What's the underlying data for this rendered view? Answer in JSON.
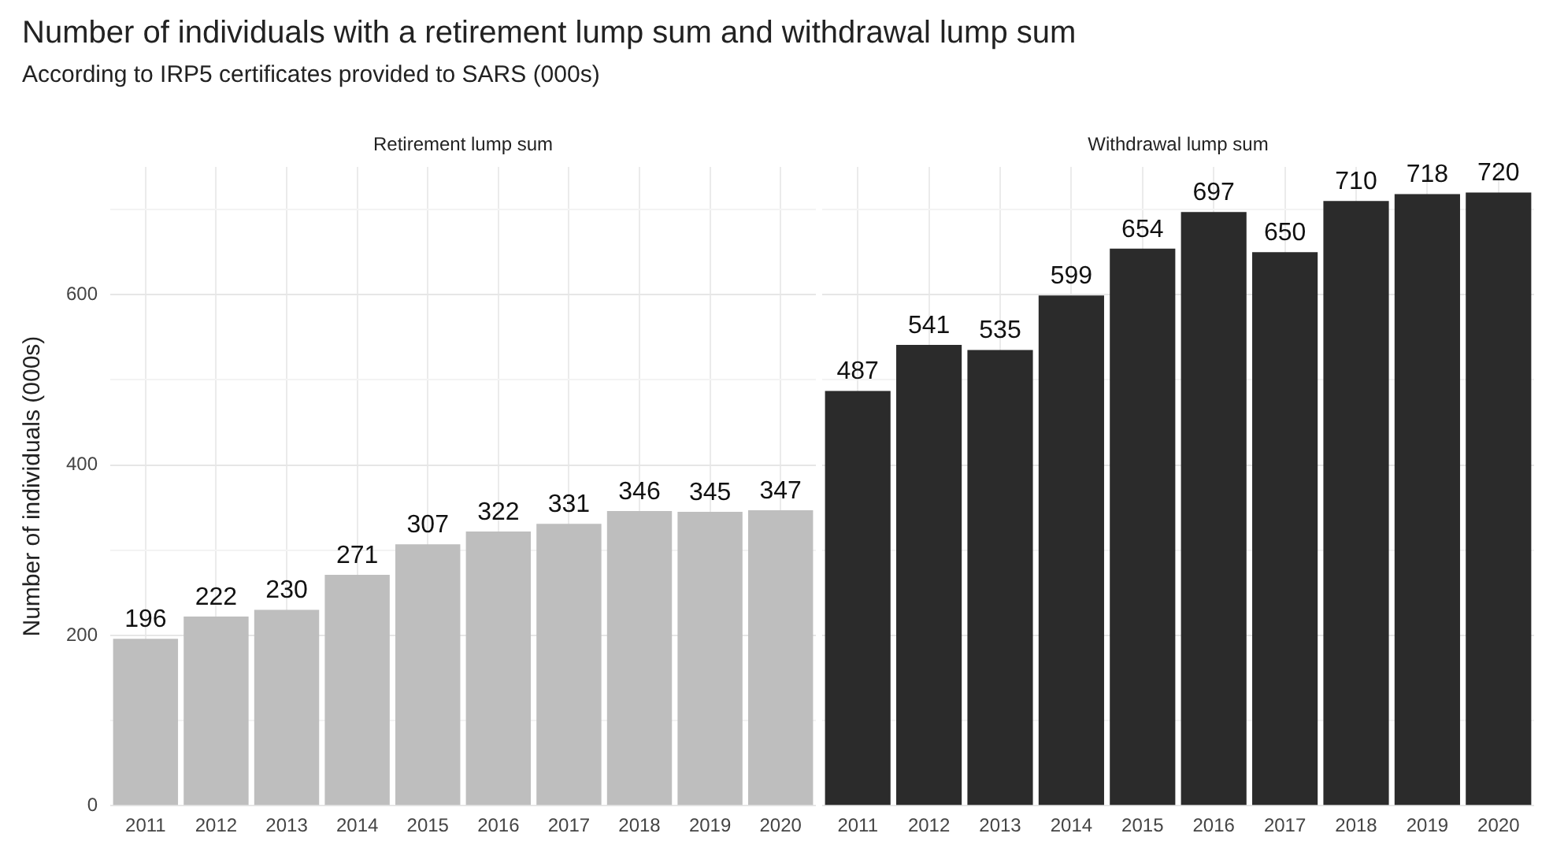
{
  "chart_data": [
    {
      "type": "bar",
      "title": "Number of individuals with a retirement lump sum and withdrawal lump sum",
      "subtitle": "According to IRP5 certificates provided to SARS (000s)",
      "annotations": [
        "Retirement lump sum"
      ],
      "ylabel": "Number of individuals (000s)",
      "categories": [
        "2011",
        "2012",
        "2013",
        "2014",
        "2015",
        "2016",
        "2017",
        "2018",
        "2019",
        "2020"
      ],
      "values": [
        196,
        222,
        230,
        271,
        307,
        322,
        331,
        346,
        345,
        347
      ],
      "color": "#bebebe",
      "data_labels": true,
      "ylim": [
        0,
        750
      ],
      "yticks": [
        0,
        {
          "value": 100,
          "label": null
        },
        200,
        {
          "value": 300,
          "label": null
        },
        400,
        {
          "value": 500,
          "label": null
        },
        600,
        {
          "value": 700,
          "label": null
        }
      ],
      "grid": true
    },
    {
      "type": "bar",
      "annotations": [
        "Withdrawal lump sum"
      ],
      "categories": [
        "2011",
        "2012",
        "2013",
        "2014",
        "2015",
        "2016",
        "2017",
        "2018",
        "2019",
        "2020"
      ],
      "values": [
        487,
        541,
        535,
        599,
        654,
        697,
        650,
        710,
        718,
        720
      ],
      "color": "#2b2b2b",
      "data_labels": true,
      "ylim": [
        0,
        750
      ],
      "yticks": [
        0,
        {
          "value": 100,
          "label": null
        },
        200,
        {
          "value": 300,
          "label": null
        },
        400,
        {
          "value": 500,
          "label": null
        },
        600,
        {
          "value": 700,
          "label": null
        }
      ],
      "grid": true,
      "tick_labels": "x"
    }
  ]
}
